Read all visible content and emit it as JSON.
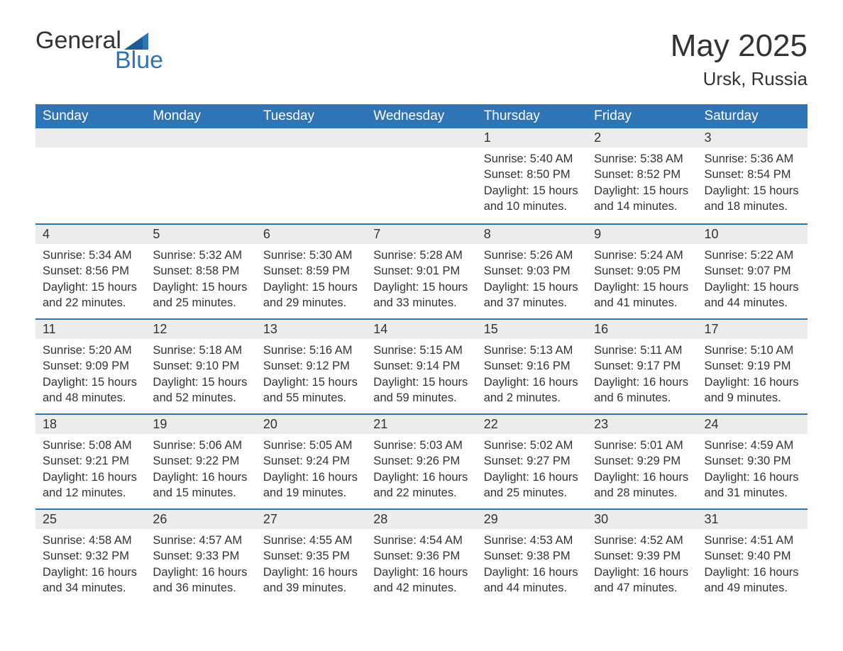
{
  "brand": {
    "name_part1": "General",
    "name_part2": "Blue",
    "text_color": "#333333",
    "accent_color": "#2f75b5"
  },
  "title": {
    "month_year": "May 2025",
    "location": "Ursk, Russia"
  },
  "styling": {
    "header_bg": "#2f75b5",
    "header_text_color": "#ffffff",
    "daynum_bg": "#ececec",
    "week_border_color": "#2f75b5",
    "body_text_color": "#333333",
    "background_color": "#ffffff",
    "header_fontsize": 19,
    "daynum_fontsize": 18,
    "detail_fontsize": 16.5,
    "title_fontsize": 44,
    "location_fontsize": 26
  },
  "days_of_week": [
    "Sunday",
    "Monday",
    "Tuesday",
    "Wednesday",
    "Thursday",
    "Friday",
    "Saturday"
  ],
  "weeks": [
    [
      {
        "empty": true
      },
      {
        "empty": true
      },
      {
        "empty": true
      },
      {
        "empty": true
      },
      {
        "day": "1",
        "sunrise": "Sunrise: 5:40 AM",
        "sunset": "Sunset: 8:50 PM",
        "daylight": "Daylight: 15 hours and 10 minutes."
      },
      {
        "day": "2",
        "sunrise": "Sunrise: 5:38 AM",
        "sunset": "Sunset: 8:52 PM",
        "daylight": "Daylight: 15 hours and 14 minutes."
      },
      {
        "day": "3",
        "sunrise": "Sunrise: 5:36 AM",
        "sunset": "Sunset: 8:54 PM",
        "daylight": "Daylight: 15 hours and 18 minutes."
      }
    ],
    [
      {
        "day": "4",
        "sunrise": "Sunrise: 5:34 AM",
        "sunset": "Sunset: 8:56 PM",
        "daylight": "Daylight: 15 hours and 22 minutes."
      },
      {
        "day": "5",
        "sunrise": "Sunrise: 5:32 AM",
        "sunset": "Sunset: 8:58 PM",
        "daylight": "Daylight: 15 hours and 25 minutes."
      },
      {
        "day": "6",
        "sunrise": "Sunrise: 5:30 AM",
        "sunset": "Sunset: 8:59 PM",
        "daylight": "Daylight: 15 hours and 29 minutes."
      },
      {
        "day": "7",
        "sunrise": "Sunrise: 5:28 AM",
        "sunset": "Sunset: 9:01 PM",
        "daylight": "Daylight: 15 hours and 33 minutes."
      },
      {
        "day": "8",
        "sunrise": "Sunrise: 5:26 AM",
        "sunset": "Sunset: 9:03 PM",
        "daylight": "Daylight: 15 hours and 37 minutes."
      },
      {
        "day": "9",
        "sunrise": "Sunrise: 5:24 AM",
        "sunset": "Sunset: 9:05 PM",
        "daylight": "Daylight: 15 hours and 41 minutes."
      },
      {
        "day": "10",
        "sunrise": "Sunrise: 5:22 AM",
        "sunset": "Sunset: 9:07 PM",
        "daylight": "Daylight: 15 hours and 44 minutes."
      }
    ],
    [
      {
        "day": "11",
        "sunrise": "Sunrise: 5:20 AM",
        "sunset": "Sunset: 9:09 PM",
        "daylight": "Daylight: 15 hours and 48 minutes."
      },
      {
        "day": "12",
        "sunrise": "Sunrise: 5:18 AM",
        "sunset": "Sunset: 9:10 PM",
        "daylight": "Daylight: 15 hours and 52 minutes."
      },
      {
        "day": "13",
        "sunrise": "Sunrise: 5:16 AM",
        "sunset": "Sunset: 9:12 PM",
        "daylight": "Daylight: 15 hours and 55 minutes."
      },
      {
        "day": "14",
        "sunrise": "Sunrise: 5:15 AM",
        "sunset": "Sunset: 9:14 PM",
        "daylight": "Daylight: 15 hours and 59 minutes."
      },
      {
        "day": "15",
        "sunrise": "Sunrise: 5:13 AM",
        "sunset": "Sunset: 9:16 PM",
        "daylight": "Daylight: 16 hours and 2 minutes."
      },
      {
        "day": "16",
        "sunrise": "Sunrise: 5:11 AM",
        "sunset": "Sunset: 9:17 PM",
        "daylight": "Daylight: 16 hours and 6 minutes."
      },
      {
        "day": "17",
        "sunrise": "Sunrise: 5:10 AM",
        "sunset": "Sunset: 9:19 PM",
        "daylight": "Daylight: 16 hours and 9 minutes."
      }
    ],
    [
      {
        "day": "18",
        "sunrise": "Sunrise: 5:08 AM",
        "sunset": "Sunset: 9:21 PM",
        "daylight": "Daylight: 16 hours and 12 minutes."
      },
      {
        "day": "19",
        "sunrise": "Sunrise: 5:06 AM",
        "sunset": "Sunset: 9:22 PM",
        "daylight": "Daylight: 16 hours and 15 minutes."
      },
      {
        "day": "20",
        "sunrise": "Sunrise: 5:05 AM",
        "sunset": "Sunset: 9:24 PM",
        "daylight": "Daylight: 16 hours and 19 minutes."
      },
      {
        "day": "21",
        "sunrise": "Sunrise: 5:03 AM",
        "sunset": "Sunset: 9:26 PM",
        "daylight": "Daylight: 16 hours and 22 minutes."
      },
      {
        "day": "22",
        "sunrise": "Sunrise: 5:02 AM",
        "sunset": "Sunset: 9:27 PM",
        "daylight": "Daylight: 16 hours and 25 minutes."
      },
      {
        "day": "23",
        "sunrise": "Sunrise: 5:01 AM",
        "sunset": "Sunset: 9:29 PM",
        "daylight": "Daylight: 16 hours and 28 minutes."
      },
      {
        "day": "24",
        "sunrise": "Sunrise: 4:59 AM",
        "sunset": "Sunset: 9:30 PM",
        "daylight": "Daylight: 16 hours and 31 minutes."
      }
    ],
    [
      {
        "day": "25",
        "sunrise": "Sunrise: 4:58 AM",
        "sunset": "Sunset: 9:32 PM",
        "daylight": "Daylight: 16 hours and 34 minutes."
      },
      {
        "day": "26",
        "sunrise": "Sunrise: 4:57 AM",
        "sunset": "Sunset: 9:33 PM",
        "daylight": "Daylight: 16 hours and 36 minutes."
      },
      {
        "day": "27",
        "sunrise": "Sunrise: 4:55 AM",
        "sunset": "Sunset: 9:35 PM",
        "daylight": "Daylight: 16 hours and 39 minutes."
      },
      {
        "day": "28",
        "sunrise": "Sunrise: 4:54 AM",
        "sunset": "Sunset: 9:36 PM",
        "daylight": "Daylight: 16 hours and 42 minutes."
      },
      {
        "day": "29",
        "sunrise": "Sunrise: 4:53 AM",
        "sunset": "Sunset: 9:38 PM",
        "daylight": "Daylight: 16 hours and 44 minutes."
      },
      {
        "day": "30",
        "sunrise": "Sunrise: 4:52 AM",
        "sunset": "Sunset: 9:39 PM",
        "daylight": "Daylight: 16 hours and 47 minutes."
      },
      {
        "day": "31",
        "sunrise": "Sunrise: 4:51 AM",
        "sunset": "Sunset: 9:40 PM",
        "daylight": "Daylight: 16 hours and 49 minutes."
      }
    ]
  ]
}
